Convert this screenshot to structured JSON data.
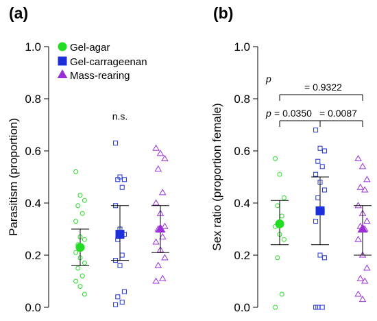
{
  "colors": {
    "gel_agar": "#22dd22",
    "gel_carrageenan": "#1c2fd8",
    "mass_rearing": "#9b30d9",
    "axis": "#000000"
  },
  "legend": {
    "items": [
      {
        "label": "Gel-agar",
        "series": "gel_agar",
        "marker": "circle"
      },
      {
        "label": "Gel-carrageenan",
        "series": "gel_carrageenan",
        "marker": "square"
      },
      {
        "label": "Mass-rearing",
        "series": "mass_rearing",
        "marker": "triangle"
      }
    ]
  },
  "chart_data": [
    {
      "type": "scatter",
      "panel_label": "(a)",
      "title": "",
      "xlabel": "",
      "ylabel": "Parasitism (proportion)",
      "ylim": [
        0,
        1
      ],
      "yticks": [
        "0.0",
        "0.2",
        "0.4",
        "0.6",
        "0.8",
        "1.0"
      ],
      "grid": false,
      "legend_position": "top-left",
      "annotations": [
        {
          "text": "n.s."
        }
      ],
      "series": [
        {
          "name": "Gel-agar",
          "key": "gel_agar",
          "marker": "circle",
          "mean": 0.23,
          "ci": [
            0.16,
            0.3
          ],
          "points": [
            0.52,
            0.43,
            0.41,
            0.39,
            0.36,
            0.33,
            0.27,
            0.26,
            0.24,
            0.23,
            0.21,
            0.19,
            0.17,
            0.15,
            0.12,
            0.1,
            0.08,
            0.05
          ]
        },
        {
          "name": "Gel-carrageenan",
          "key": "gel_carrageenan",
          "marker": "square",
          "mean": 0.28,
          "ci": [
            0.18,
            0.39
          ],
          "points": [
            0.63,
            0.5,
            0.49,
            0.49,
            0.46,
            0.39,
            0.3,
            0.28,
            0.26,
            0.2,
            0.18,
            0.16,
            0.06,
            0.04,
            0.02,
            0.01
          ]
        },
        {
          "name": "Mass-rearing",
          "key": "mass_rearing",
          "marker": "triangle",
          "mean": 0.3,
          "ci": [
            0.21,
            0.39
          ],
          "points": [
            0.61,
            0.59,
            0.57,
            0.53,
            0.44,
            0.4,
            0.36,
            0.31,
            0.3,
            0.27,
            0.25,
            0.22,
            0.19,
            0.16,
            0.11,
            0.1
          ]
        }
      ]
    },
    {
      "type": "scatter",
      "panel_label": "(b)",
      "title": "",
      "xlabel": "",
      "ylabel": "Sex ratio (proportion female)",
      "ylim": [
        0,
        1
      ],
      "yticks": [
        "0.0",
        "0.2",
        "0.4",
        "0.6",
        "0.8",
        "1.0"
      ],
      "grid": false,
      "annotations": [
        {
          "p_label": "p",
          "text": "= 0.9322",
          "from": 0,
          "to": 2,
          "y": 0.85
        },
        {
          "p_label": "p",
          "text": "= 0.0350",
          "from": 0,
          "to": 1,
          "y": 0.75
        },
        {
          "p_label": "",
          "text": "= 0.0087",
          "from": 1,
          "to": 2,
          "y": 0.75
        }
      ],
      "series": [
        {
          "name": "Gel-agar",
          "key": "gel_agar",
          "marker": "circle",
          "mean": 0.32,
          "ci": [
            0.24,
            0.41
          ],
          "points": [
            0.57,
            0.51,
            0.42,
            0.39,
            0.35,
            0.31,
            0.28,
            0.26,
            0.19,
            0.05,
            0.0
          ]
        },
        {
          "name": "Gel-carrageenan",
          "key": "gel_carrageenan",
          "marker": "square",
          "mean": 0.37,
          "ci": [
            0.24,
            0.5
          ],
          "points": [
            0.68,
            0.61,
            0.6,
            0.56,
            0.54,
            0.51,
            0.48,
            0.45,
            0.42,
            0.37,
            0.33,
            0.2,
            0.19,
            0.0,
            0.0,
            0.0
          ]
        },
        {
          "name": "Mass-rearing",
          "key": "mass_rearing",
          "marker": "triangle",
          "mean": 0.3,
          "ci": [
            0.2,
            0.39
          ],
          "points": [
            0.57,
            0.54,
            0.49,
            0.46,
            0.45,
            0.39,
            0.36,
            0.33,
            0.31,
            0.3,
            0.26,
            0.2,
            0.15,
            0.11,
            0.1,
            0.05,
            0.03
          ]
        }
      ]
    }
  ]
}
